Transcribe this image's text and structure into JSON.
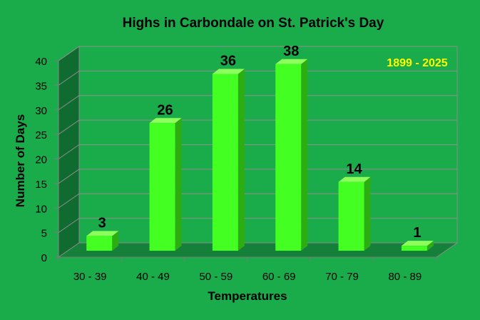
{
  "chart_data": {
    "type": "bar",
    "title": "Highs in Carbondale on St. Patrick's Day",
    "annotation": "1899 - 2025",
    "xlabel": "Temperatures",
    "ylabel": "Number of Days",
    "categories": [
      "30 - 39",
      "40 - 49",
      "50 - 59",
      "60 - 69",
      "70 - 79",
      "80 - 89"
    ],
    "values": [
      3,
      26,
      36,
      38,
      14,
      1
    ],
    "ylim": [
      0,
      40
    ],
    "yticks": [
      0,
      5,
      10,
      15,
      20,
      25,
      30,
      35,
      40
    ],
    "grid": true,
    "colors": {
      "background": "#1aab4a",
      "wall": "#1aab4a",
      "side_wall": "#0f6b2f",
      "floor": "#15803a",
      "bar_front": "#44ff22",
      "bar_side": "#2cae13",
      "bar_top": "#8cff5c",
      "gridline": "#8f8f8f",
      "annotation": "#ffff00",
      "text": "#000000"
    }
  }
}
